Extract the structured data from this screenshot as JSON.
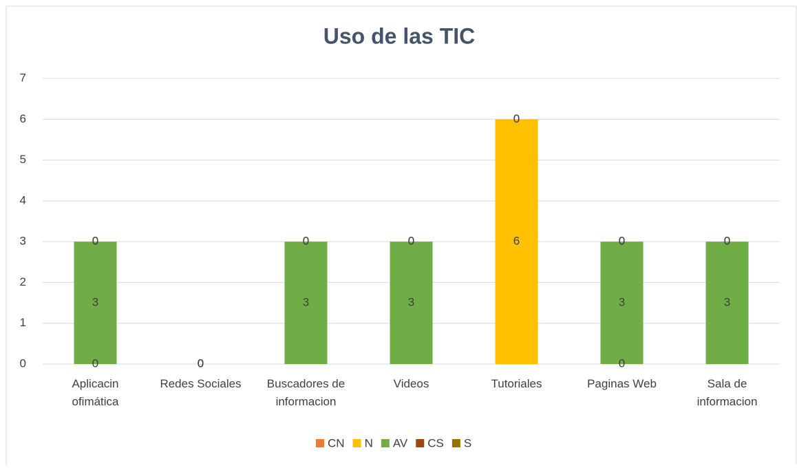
{
  "chart_data": {
    "type": "stacked_bar",
    "title": "Uso de las TIC",
    "categories": [
      "Aplicacin ofimática",
      "Redes Sociales",
      "Buscadores de informacion",
      "Videos",
      "Tutoriales",
      "Paginas Web",
      "Sala de informacion"
    ],
    "series": [
      {
        "name": "CN",
        "color": "#ed7d31",
        "values": [
          0,
          0,
          null,
          null,
          null,
          0,
          null
        ]
      },
      {
        "name": "N",
        "color": "#ffc000",
        "values": [
          null,
          0,
          null,
          null,
          6,
          null,
          null
        ]
      },
      {
        "name": "AV",
        "color": "#70ad47",
        "values": [
          3,
          0,
          3,
          3,
          null,
          3,
          3
        ]
      },
      {
        "name": "CS",
        "color": "#9e480e",
        "values": [
          0,
          0,
          0,
          0,
          0,
          0,
          0
        ]
      },
      {
        "name": "S",
        "color": "#997300",
        "values": [
          0,
          null,
          0,
          0,
          0,
          0,
          0
        ]
      }
    ],
    "ylim": [
      0,
      7
    ],
    "yticks": [
      0,
      1,
      2,
      3,
      4,
      5,
      6,
      7
    ],
    "grid": true,
    "legend": "bottom"
  }
}
